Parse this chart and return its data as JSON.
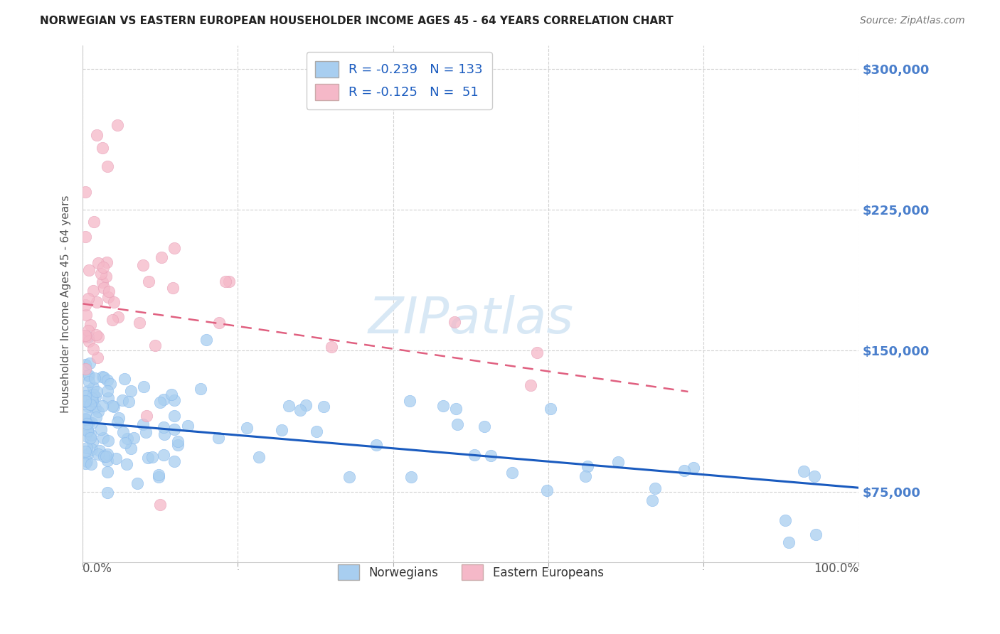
{
  "title": "NORWEGIAN VS EASTERN EUROPEAN HOUSEHOLDER INCOME AGES 45 - 64 YEARS CORRELATION CHART",
  "source": "Source: ZipAtlas.com",
  "ylabel": "Householder Income Ages 45 - 64 years",
  "ytick_values": [
    75000,
    150000,
    225000,
    300000
  ],
  "ymin": 37500,
  "ymax": 312500,
  "xmin": 0.0,
  "xmax": 100.0,
  "norwegian_R": -0.239,
  "norwegian_N": 133,
  "eastern_R": -0.125,
  "eastern_N": 51,
  "norwegian_color": "#A8CEF0",
  "eastern_color": "#F5B8C8",
  "norwegian_line_color": "#1A5BBF",
  "eastern_line_color": "#E06080",
  "background_color": "#FFFFFF",
  "watermark_text": "ZIPatlas",
  "watermark_color": "#D8E8F5",
  "nor_line_intercept": 112000,
  "nor_line_slope": -350,
  "ee_line_intercept": 175000,
  "ee_line_slope": -600
}
